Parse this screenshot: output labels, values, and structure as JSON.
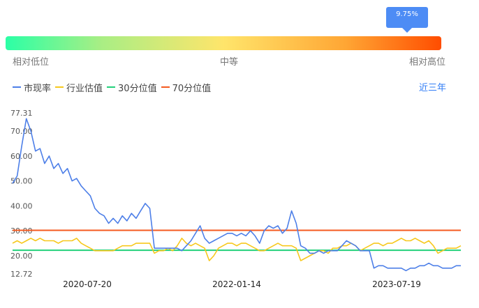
{
  "percentile": {
    "value_label": "9.75%",
    "value": 0.0975,
    "low_label": "相对低位",
    "mid_label": "中等",
    "high_label": "相对高位"
  },
  "legend": [
    {
      "name": "市现率",
      "color": "#4d7fe8"
    },
    {
      "name": "行业估值",
      "color": "#f7c81c"
    },
    {
      "name": "30分位值",
      "color": "#22d17a"
    },
    {
      "name": "70分位值",
      "color": "#f45a1f"
    }
  ],
  "range_label": "近三年",
  "chart_data": {
    "type": "line",
    "y_ticks": [
      "12.72",
      "20.00",
      "30.00",
      "40.00",
      "50.00",
      "60.00",
      "70.00",
      "77.31"
    ],
    "ylim": [
      12.72,
      77.31
    ],
    "x_ticks": [
      "2020-07-20",
      "2022-01-14",
      "2023-07-19"
    ],
    "pct30_value": 22.2,
    "pct70_value": 30.2,
    "series": [
      {
        "name": "市现率",
        "values": [
          49,
          52,
          64,
          75,
          70,
          62,
          63,
          57,
          60,
          55,
          57,
          53,
          55,
          50,
          51,
          48,
          46,
          44,
          39,
          37,
          36,
          33,
          35,
          33,
          36,
          34,
          37,
          35,
          38,
          41,
          39,
          23,
          23,
          23,
          23,
          23,
          23,
          22,
          24,
          26,
          29,
          32,
          27,
          25,
          26,
          27,
          28,
          29,
          29,
          28,
          29,
          28,
          30,
          28,
          25,
          30,
          32,
          31,
          32,
          29,
          31,
          38,
          33,
          24,
          23,
          21,
          21,
          22,
          21,
          22,
          22,
          22,
          24,
          26,
          25,
          24,
          22,
          22,
          22,
          15,
          16,
          16,
          15,
          15,
          15,
          15,
          14,
          15,
          15,
          16,
          16,
          17,
          16,
          16,
          15,
          15,
          15,
          16,
          16
        ]
      },
      {
        "name": "行业估值",
        "values": [
          25,
          26,
          25,
          26,
          27,
          26,
          27,
          26,
          26,
          26,
          25,
          26,
          26,
          26,
          27,
          25,
          24,
          23,
          22,
          22,
          22,
          22,
          22,
          23,
          24,
          24,
          24,
          25,
          25,
          25,
          25,
          21,
          22,
          22,
          23,
          22,
          24,
          27,
          25,
          24,
          25,
          24,
          23,
          18,
          20,
          23,
          24,
          25,
          25,
          24,
          25,
          25,
          24,
          23,
          22,
          22,
          23,
          24,
          25,
          24,
          24,
          24,
          23,
          18,
          19,
          20,
          21,
          22,
          22,
          21,
          23,
          23,
          24,
          24,
          25,
          24,
          22,
          23,
          24,
          25,
          25,
          24,
          25,
          25,
          26,
          27,
          26,
          26,
          27,
          26,
          25,
          26,
          24,
          21,
          22,
          23,
          23,
          23,
          24
        ]
      }
    ]
  }
}
